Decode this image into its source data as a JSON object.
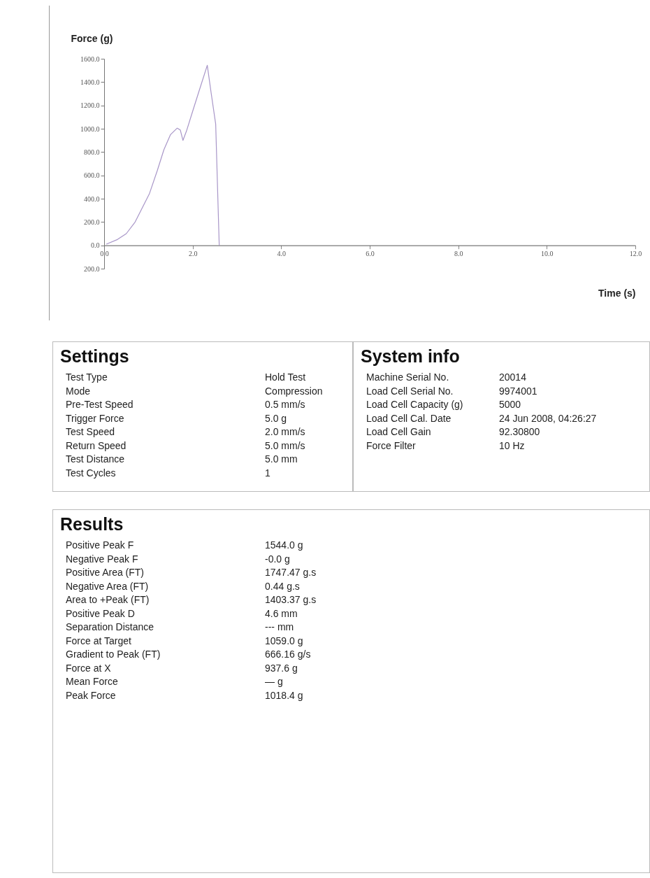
{
  "chart_data": [
    {
      "type": "line",
      "xlabel": "Time (s)",
      "ylabel": "Force (g)",
      "x": [
        0.05,
        0.3,
        0.5,
        0.7,
        0.82,
        1.02,
        1.2,
        1.35,
        1.5,
        1.65,
        1.72,
        1.78,
        1.86,
        2.0,
        2.15,
        2.33,
        2.42,
        2.52,
        2.6
      ],
      "series": [
        {
          "color": "#a896c8",
          "values": [
            10,
            50,
            100,
            200,
            290,
            440,
            640,
            820,
            950,
            1005,
            990,
            900,
            980,
            1150,
            1330,
            1544,
            1300,
            1040,
            0
          ]
        }
      ],
      "xlim": [
        0,
        12
      ],
      "ylim": [
        -200,
        1600
      ],
      "xticks": [
        {
          "value": 0,
          "label": "0.0"
        },
        {
          "value": 2,
          "label": "2.0"
        },
        {
          "value": 4,
          "label": "4.0"
        },
        {
          "value": 6,
          "label": "6.0"
        },
        {
          "value": 8,
          "label": "8.0"
        },
        {
          "value": 10,
          "label": "10.0"
        },
        {
          "value": 12,
          "label": "12.0"
        }
      ],
      "yticks": [
        {
          "value": -200,
          "label": "200.0"
        },
        {
          "value": 0,
          "label": "0.0"
        },
        {
          "value": 200,
          "label": "200.0"
        },
        {
          "value": 400,
          "label": "400.0"
        },
        {
          "value": 600,
          "label": "600.0"
        },
        {
          "value": 800,
          "label": "800.0"
        },
        {
          "value": 1000,
          "label": "1000.0"
        },
        {
          "value": 1200,
          "label": "1200.0"
        },
        {
          "value": 1400,
          "label": "1400.0"
        },
        {
          "value": 1600,
          "label": "1600.0"
        }
      ],
      "grid": false
    },
    {
      "type": "other",
      "title": "Settings",
      "annotations": [
        "Test Type",
        "Hold Test",
        "Mode",
        "Compression",
        "Pre-Test Speed",
        "0.5 mm/s",
        "Trigger Force",
        "5.0 g",
        "Test Speed",
        "2.0 mm/s",
        "Return Speed",
        "5.0 mm/s",
        "Test Distance",
        "5.0 mm",
        "Test Cycles",
        "1"
      ]
    },
    {
      "type": "other",
      "title": "System info",
      "annotations": [
        "Machine Serial No.",
        "20014",
        "Load Cell Serial No.",
        "9974001",
        "Load Cell Capacity (g)",
        "5000",
        "Load Cell Cal. Date",
        "24 Jun 2008, 04:26:27",
        "Load Cell Gain",
        "92.30800",
        "Force Filter",
        "10 Hz"
      ]
    },
    {
      "type": "other",
      "title": "Results",
      "annotations": [
        "Positive Peak F",
        "1544.0 g",
        "Negative Peak F",
        "-0.0 g",
        "Positive Area (FT)",
        "1747.47 g.s",
        "Negative Area (FT)",
        "0.44 g.s",
        "Area to +Peak (FT)",
        "1403.37 g.s",
        "Positive Peak D",
        "4.6 mm",
        "Separation Distance",
        "--- mm",
        "Force at Target",
        "1059.0 g",
        "Gradient to Peak (FT)",
        "666.16 g/s",
        "Force at X",
        "937.6 g",
        "Mean Force",
        "— g",
        "Peak Force",
        "1018.4 g"
      ]
    }
  ]
}
